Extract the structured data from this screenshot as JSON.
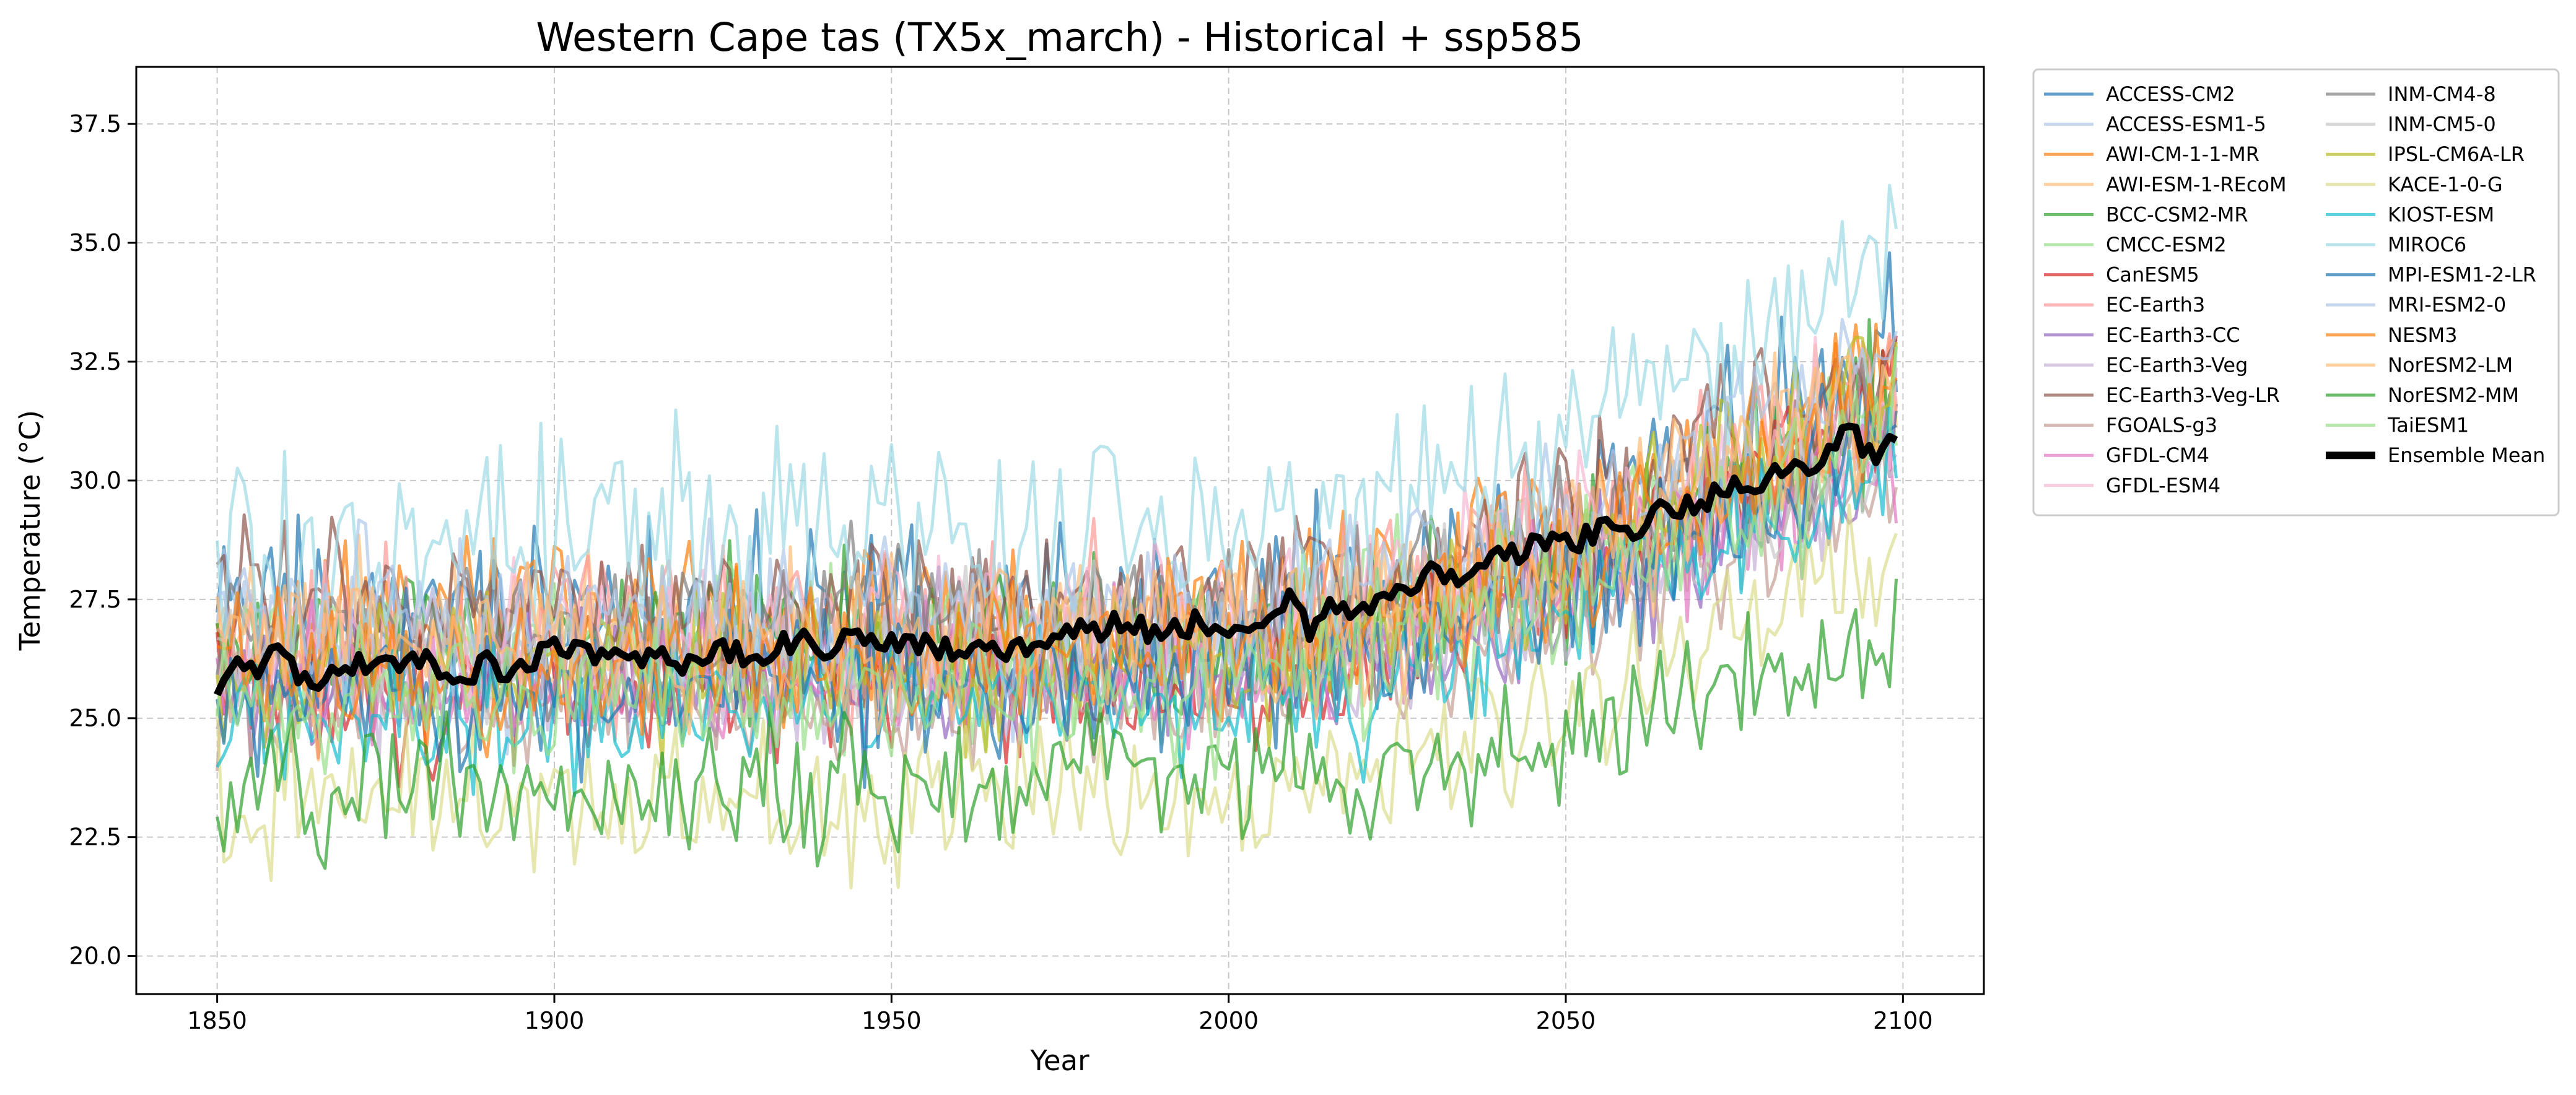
{
  "chart_data": {
    "type": "line",
    "title": "Western Cape tas (TX5x_march) - Historical + ssp585",
    "xlabel": "Year",
    "ylabel": "Temperature (°C)",
    "xlim": [
      1838,
      2112
    ],
    "ylim": [
      19.2,
      38.7
    ],
    "x_ticks": [
      1850,
      1900,
      1950,
      2000,
      2050,
      2100
    ],
    "y_ticks": [
      20.0,
      22.5,
      25.0,
      27.5,
      30.0,
      32.5,
      35.0,
      37.5
    ],
    "x_tick_labels": [
      "1850",
      "1900",
      "1950",
      "2000",
      "2050",
      "2100"
    ],
    "y_tick_labels": [
      "20.0",
      "22.5",
      "25.0",
      "27.5",
      "30.0",
      "32.5",
      "35.0",
      "37.5"
    ],
    "grid": true,
    "legend_position": "outside-right",
    "series_x_range": [
      1850,
      2099
    ],
    "series": [
      {
        "name": "ACCESS-CM2",
        "color": "#1f77b4",
        "base": 26.9,
        "trend": 4.6,
        "amp": 1.9
      },
      {
        "name": "ACCESS-ESM1-5",
        "color": "#aec7e8",
        "base": 26.5,
        "trend": 3.9,
        "amp": 1.6
      },
      {
        "name": "AWI-CM-1-1-MR",
        "color": "#ff7f0e",
        "base": 27.0,
        "trend": 4.4,
        "amp": 1.5
      },
      {
        "name": "AWI-ESM-1-REcoM",
        "color": "#ffbb78",
        "base": 26.7,
        "trend": 4.1,
        "amp": 1.5
      },
      {
        "name": "BCC-CSM2-MR",
        "color": "#2ca02c",
        "base": 26.4,
        "trend": 4.2,
        "amp": 1.6
      },
      {
        "name": "CMCC-ESM2",
        "color": "#98df8a",
        "base": 26.3,
        "trend": 4.3,
        "amp": 1.6
      },
      {
        "name": "CanESM5",
        "color": "#d62728",
        "base": 25.4,
        "trend": 5.6,
        "amp": 1.4
      },
      {
        "name": "EC-Earth3",
        "color": "#ff9896",
        "base": 26.6,
        "trend": 4.6,
        "amp": 1.6
      },
      {
        "name": "EC-Earth3-CC",
        "color": "#9467bd",
        "base": 25.6,
        "trend": 4.2,
        "amp": 1.4
      },
      {
        "name": "EC-Earth3-Veg",
        "color": "#c5b0d5",
        "base": 25.8,
        "trend": 4.1,
        "amp": 1.4
      },
      {
        "name": "EC-Earth3-Veg-LR",
        "color": "#8c564b",
        "base": 27.3,
        "trend": 4.1,
        "amp": 1.6
      },
      {
        "name": "FGOALS-g3",
        "color": "#c49c94",
        "base": 25.3,
        "trend": 3.5,
        "amp": 1.4
      },
      {
        "name": "GFDL-CM4",
        "color": "#e377c2",
        "base": 25.8,
        "trend": 3.9,
        "amp": 1.3
      },
      {
        "name": "GFDL-ESM4",
        "color": "#f7b6d2",
        "base": 26.8,
        "trend": 3.7,
        "amp": 1.6
      },
      {
        "name": "INM-CM4-8",
        "color": "#7f7f7f",
        "base": 26.8,
        "trend": 3.4,
        "amp": 1.5
      },
      {
        "name": "INM-CM5-0",
        "color": "#c7c7c7",
        "base": 26.2,
        "trend": 3.5,
        "amp": 1.5
      },
      {
        "name": "IPSL-CM6A-LR",
        "color": "#bcbd22",
        "base": 25.8,
        "trend": 5.6,
        "amp": 1.5
      },
      {
        "name": "KACE-1-0-G",
        "color": "#dbdb8d",
        "base": 23.1,
        "trend": 4.4,
        "amp": 1.5
      },
      {
        "name": "KIOST-ESM",
        "color": "#17becf",
        "base": 25.0,
        "trend": 4.3,
        "amp": 1.4
      },
      {
        "name": "MIROC6",
        "color": "#9edae5",
        "base": 28.6,
        "trend": 5.2,
        "amp": 2.0
      },
      {
        "name": "MPI-ESM1-2-LR",
        "color": "#1f77b4",
        "base": 25.6,
        "trend": 4.6,
        "amp": 1.5
      },
      {
        "name": "MRI-ESM2-0",
        "color": "#aec7e8",
        "base": 27.0,
        "trend": 4.8,
        "amp": 1.6
      },
      {
        "name": "NESM3",
        "color": "#ff7f0e",
        "base": 26.0,
        "trend": 4.8,
        "amp": 1.5
      },
      {
        "name": "NorESM2-LM",
        "color": "#ffbb78",
        "base": 26.4,
        "trend": 4.4,
        "amp": 1.6
      },
      {
        "name": "NorESM2-MM",
        "color": "#2ca02c",
        "base": 23.4,
        "trend": 2.0,
        "amp": 1.4
      },
      {
        "name": "TaiESM1",
        "color": "#98df8a",
        "base": 25.5,
        "trend": 4.8,
        "amp": 1.5
      }
    ],
    "ensemble_mean": {
      "name": "Ensemble Mean",
      "color": "#000000",
      "points": [
        [
          1850,
          25.7
        ],
        [
          1852,
          26.2
        ],
        [
          1855,
          26.1
        ],
        [
          1860,
          26.3
        ],
        [
          1863,
          25.8
        ],
        [
          1870,
          26.1
        ],
        [
          1875,
          26.3
        ],
        [
          1880,
          26.2
        ],
        [
          1885,
          25.9
        ],
        [
          1890,
          26.1
        ],
        [
          1895,
          26.0
        ],
        [
          1899,
          26.5
        ],
        [
          1905,
          26.3
        ],
        [
          1910,
          26.2
        ],
        [
          1915,
          26.3
        ],
        [
          1920,
          26.2
        ],
        [
          1925,
          26.4
        ],
        [
          1930,
          26.3
        ],
        [
          1935,
          26.6
        ],
        [
          1940,
          26.5
        ],
        [
          1945,
          26.8
        ],
        [
          1950,
          26.6
        ],
        [
          1955,
          26.5
        ],
        [
          1960,
          26.4
        ],
        [
          1965,
          26.5
        ],
        [
          1970,
          26.5
        ],
        [
          1975,
          26.8
        ],
        [
          1980,
          26.9
        ],
        [
          1985,
          27.0
        ],
        [
          1990,
          26.8
        ],
        [
          1995,
          27.0
        ],
        [
          2000,
          26.9
        ],
        [
          2005,
          27.2
        ],
        [
          2010,
          27.5
        ],
        [
          2012,
          26.9
        ],
        [
          2015,
          27.3
        ],
        [
          2020,
          27.2
        ],
        [
          2025,
          27.8
        ],
        [
          2030,
          28.0
        ],
        [
          2035,
          28.1
        ],
        [
          2040,
          28.4
        ],
        [
          2045,
          28.6
        ],
        [
          2050,
          28.6
        ],
        [
          2055,
          28.9
        ],
        [
          2060,
          29.0
        ],
        [
          2065,
          29.4
        ],
        [
          2070,
          29.6
        ],
        [
          2075,
          29.8
        ],
        [
          2080,
          30.1
        ],
        [
          2085,
          30.3
        ],
        [
          2090,
          30.7
        ],
        [
          2092,
          31.1
        ],
        [
          2095,
          30.5
        ],
        [
          2099,
          30.9
        ]
      ]
    }
  }
}
